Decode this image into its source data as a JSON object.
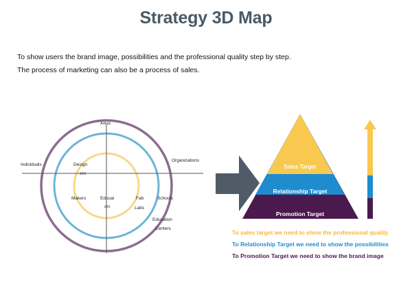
{
  "header": {
    "title": "Strategy 3D Map"
  },
  "intro": {
    "line1": "To show users the brand image, possibilities and the professional quality step by step.",
    "line2": "The process of marketing can also be a process of sales."
  },
  "circle_map": {
    "labels": {
      "artists": "Artists",
      "individuals": "Individuals",
      "organizations": "Organizations",
      "design": "Design",
      "ers": "ers",
      "makers": "Makers",
      "educat": "Educat",
      "ors": "ors",
      "fab": "Fab",
      "labs": "Labs",
      "schools": "Schools",
      "education": "Education",
      "centers": "Centers"
    },
    "colors": {
      "outer": "#8b6c8f",
      "middle": "#6bb4d8",
      "inner": "#f5d98a",
      "axis": "#555555"
    }
  },
  "pyramid": {
    "levels": [
      {
        "label": "Sales Target",
        "color": "#f9c94f"
      },
      {
        "label": "Relationship Target",
        "color": "#1f8ccf"
      },
      {
        "label": "Promotion Target",
        "color": "#4a1a4f"
      }
    ],
    "arrow_color": "#4f5b66"
  },
  "legend": {
    "line1": "To sales target we need to show the professional quality",
    "line2": "To Relationship Target we need to show the possibilities",
    "line3": "To Promotion Target we need to show the brand image",
    "color1": "#f6b73c",
    "color2": "#1f8ccf",
    "color3": "#4a1a4f"
  }
}
